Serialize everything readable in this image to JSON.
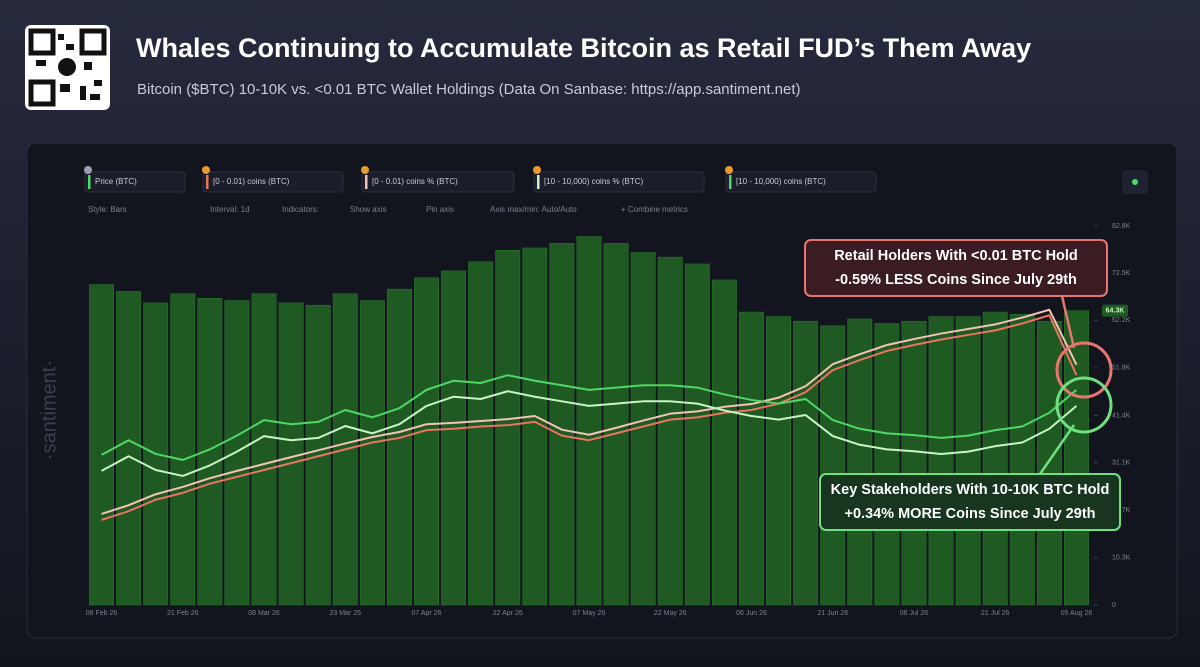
{
  "header": {
    "title": "Whales Continuing to Accumulate Bitcoin as Retail FUD’s Them Away",
    "subtitle": "Bitcoin ($BTC) 10-10K vs. <0.01 BTC Wallet Holdings (Data On Sanbase: https://app.santiment.net)"
  },
  "toolbar": [
    "Style: Bars",
    "Interval: 1d",
    "Indicators:",
    "Show axis",
    "Pin axis",
    "Axis max/min: Auto/Auto",
    "+ Combine metrics"
  ],
  "watermark": "·santiment·",
  "chart_data": {
    "type": "combo",
    "categories": [
      "06 Feb 26",
      null,
      null,
      "21 Feb 26",
      null,
      null,
      "08 Mar 26",
      null,
      null,
      "23 Mar 26",
      null,
      null,
      "07 Apr 26",
      null,
      null,
      "22 Apr 26",
      null,
      null,
      "07 May 26",
      null,
      null,
      "22 May 26",
      null,
      null,
      "06 Jun 26",
      null,
      null,
      "21 Jun 26",
      null,
      null,
      "06 Jul 26",
      null,
      null,
      "21 Jul 26",
      null,
      null,
      "05 Aug 26"
    ],
    "ylim": [
      0,
      82800
    ],
    "yticks": [
      0,
      {
        "value": 10300,
        "label": "10.3K"
      },
      {
        "value": 20700,
        "label": "20.7K"
      },
      {
        "value": 31100,
        "label": "31.1K"
      },
      {
        "value": 41400,
        "label": "41.4K"
      },
      {
        "value": 51800,
        "label": "51.8K"
      },
      {
        "value": 62200,
        "label": "62.2K"
      },
      {
        "value": 72500,
        "label": "72.5K"
      },
      {
        "value": 82800,
        "label": "82.8K"
      }
    ],
    "series": [
      {
        "name": "Price (BTC)",
        "kind": "bar",
        "color": "#1e5a22",
        "values": [
          70000,
          68500,
          66000,
          68000,
          67000,
          66500,
          68000,
          66000,
          65500,
          68000,
          66500,
          69000,
          71500,
          73000,
          75000,
          77500,
          78000,
          79000,
          80500,
          79000,
          77000,
          76000,
          74500,
          71000,
          64000,
          63000,
          62000,
          61000,
          62500,
          61500,
          62000,
          63000,
          63000,
          64000,
          63500,
          62000,
          64300
        ],
        "value_labels": [
          null,
          null,
          null,
          null,
          null,
          null,
          null,
          null,
          null,
          null,
          null,
          null,
          null,
          null,
          null,
          null,
          null,
          null,
          null,
          null,
          null,
          null,
          null,
          null,
          null,
          null,
          null,
          null,
          null,
          null,
          null,
          null,
          null,
          null,
          null,
          null,
          "64.3K"
        ]
      },
      {
        "name": "[0 - 0.01) coins (BTC)",
        "kind": "line",
        "color": "#e8765f",
        "values": [
          18600,
          20500,
          23000,
          24500,
          26500,
          28000,
          29500,
          31000,
          32500,
          34000,
          35500,
          36500,
          38200,
          38500,
          39000,
          39300,
          40000,
          37000,
          36000,
          37500,
          39000,
          40500,
          41000,
          42000,
          42600,
          44000,
          46500,
          51300,
          53500,
          55500,
          56800,
          58000,
          59000,
          60000,
          61500,
          63300,
          50200
        ]
      },
      {
        "name": "[0 - 0.01) coins % (BTC)",
        "kind": "line",
        "color": "#f3c4b6",
        "values": [
          19900,
          21800,
          24200,
          25800,
          27700,
          29300,
          30800,
          32300,
          33800,
          35300,
          36700,
          37800,
          39500,
          39800,
          40200,
          40600,
          41300,
          38300,
          37200,
          38700,
          40300,
          41800,
          42300,
          43300,
          43900,
          45300,
          47800,
          52600,
          54800,
          56800,
          58100,
          59300,
          60300,
          61300,
          62800,
          64500,
          52500
        ]
      },
      {
        "name": "[10 - 10,000) coins % (BTC)",
        "kind": "line",
        "color": "#c9f5c2",
        "values": [
          29300,
          32500,
          29500,
          28200,
          30500,
          33500,
          36900,
          36000,
          36500,
          39100,
          37500,
          39500,
          43500,
          45500,
          45000,
          46700,
          45500,
          44500,
          43500,
          44000,
          44500,
          44500,
          44000,
          42500,
          41300,
          40500,
          41500,
          36900,
          35000,
          34000,
          33600,
          33000,
          33500,
          34700,
          35500,
          38500,
          43500
        ]
      },
      {
        "name": "[10 - 10,000) coins (BTC)",
        "kind": "line",
        "color": "#4fd866",
        "values": [
          32800,
          36000,
          33000,
          31700,
          34000,
          37000,
          40400,
          39500,
          40000,
          42600,
          41000,
          43000,
          47000,
          49000,
          48500,
          50200,
          49000,
          48000,
          47000,
          47500,
          48000,
          48000,
          47500,
          46000,
          44800,
          44000,
          45000,
          40400,
          38500,
          37500,
          37100,
          36500,
          37000,
          38200,
          39000,
          42000,
          47000
        ]
      }
    ],
    "annotations": [
      {
        "color": "#e8766f",
        "lines": [
          "Retail Holders With <0.01 BTC Hold",
          "-0.59% LESS Coins Since July 29th"
        ]
      },
      {
        "color": "#6fe07f",
        "lines": [
          "Key Stakeholders With 10-10K BTC Hold",
          "+0.34% MORE Coins Since July 29th"
        ]
      }
    ]
  }
}
